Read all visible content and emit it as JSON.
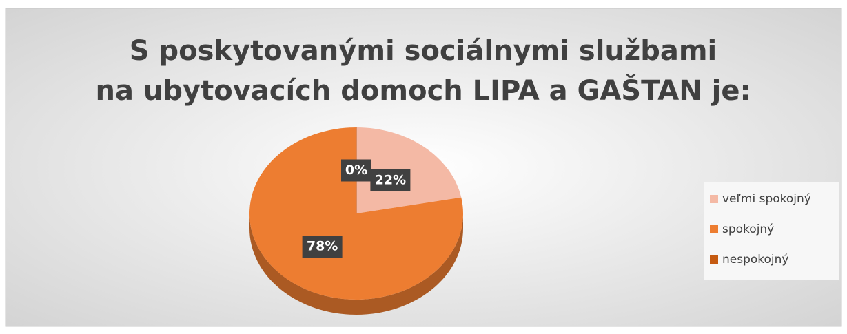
{
  "chart_data": {
    "type": "pie",
    "title": [
      "S poskytovanými sociálnymi službami",
      "na ubytovacích domoch LIPA a GAŠTAN je:"
    ],
    "categories": [
      "veľmi spokojný",
      "spokojný",
      "nespokojný"
    ],
    "values": [
      22,
      78,
      0
    ],
    "value_labels": [
      "22%",
      "78%",
      "0%"
    ],
    "colors": [
      "#f4b9a5",
      "#ed7d31",
      "#c55a11"
    ],
    "legend": "right"
  }
}
